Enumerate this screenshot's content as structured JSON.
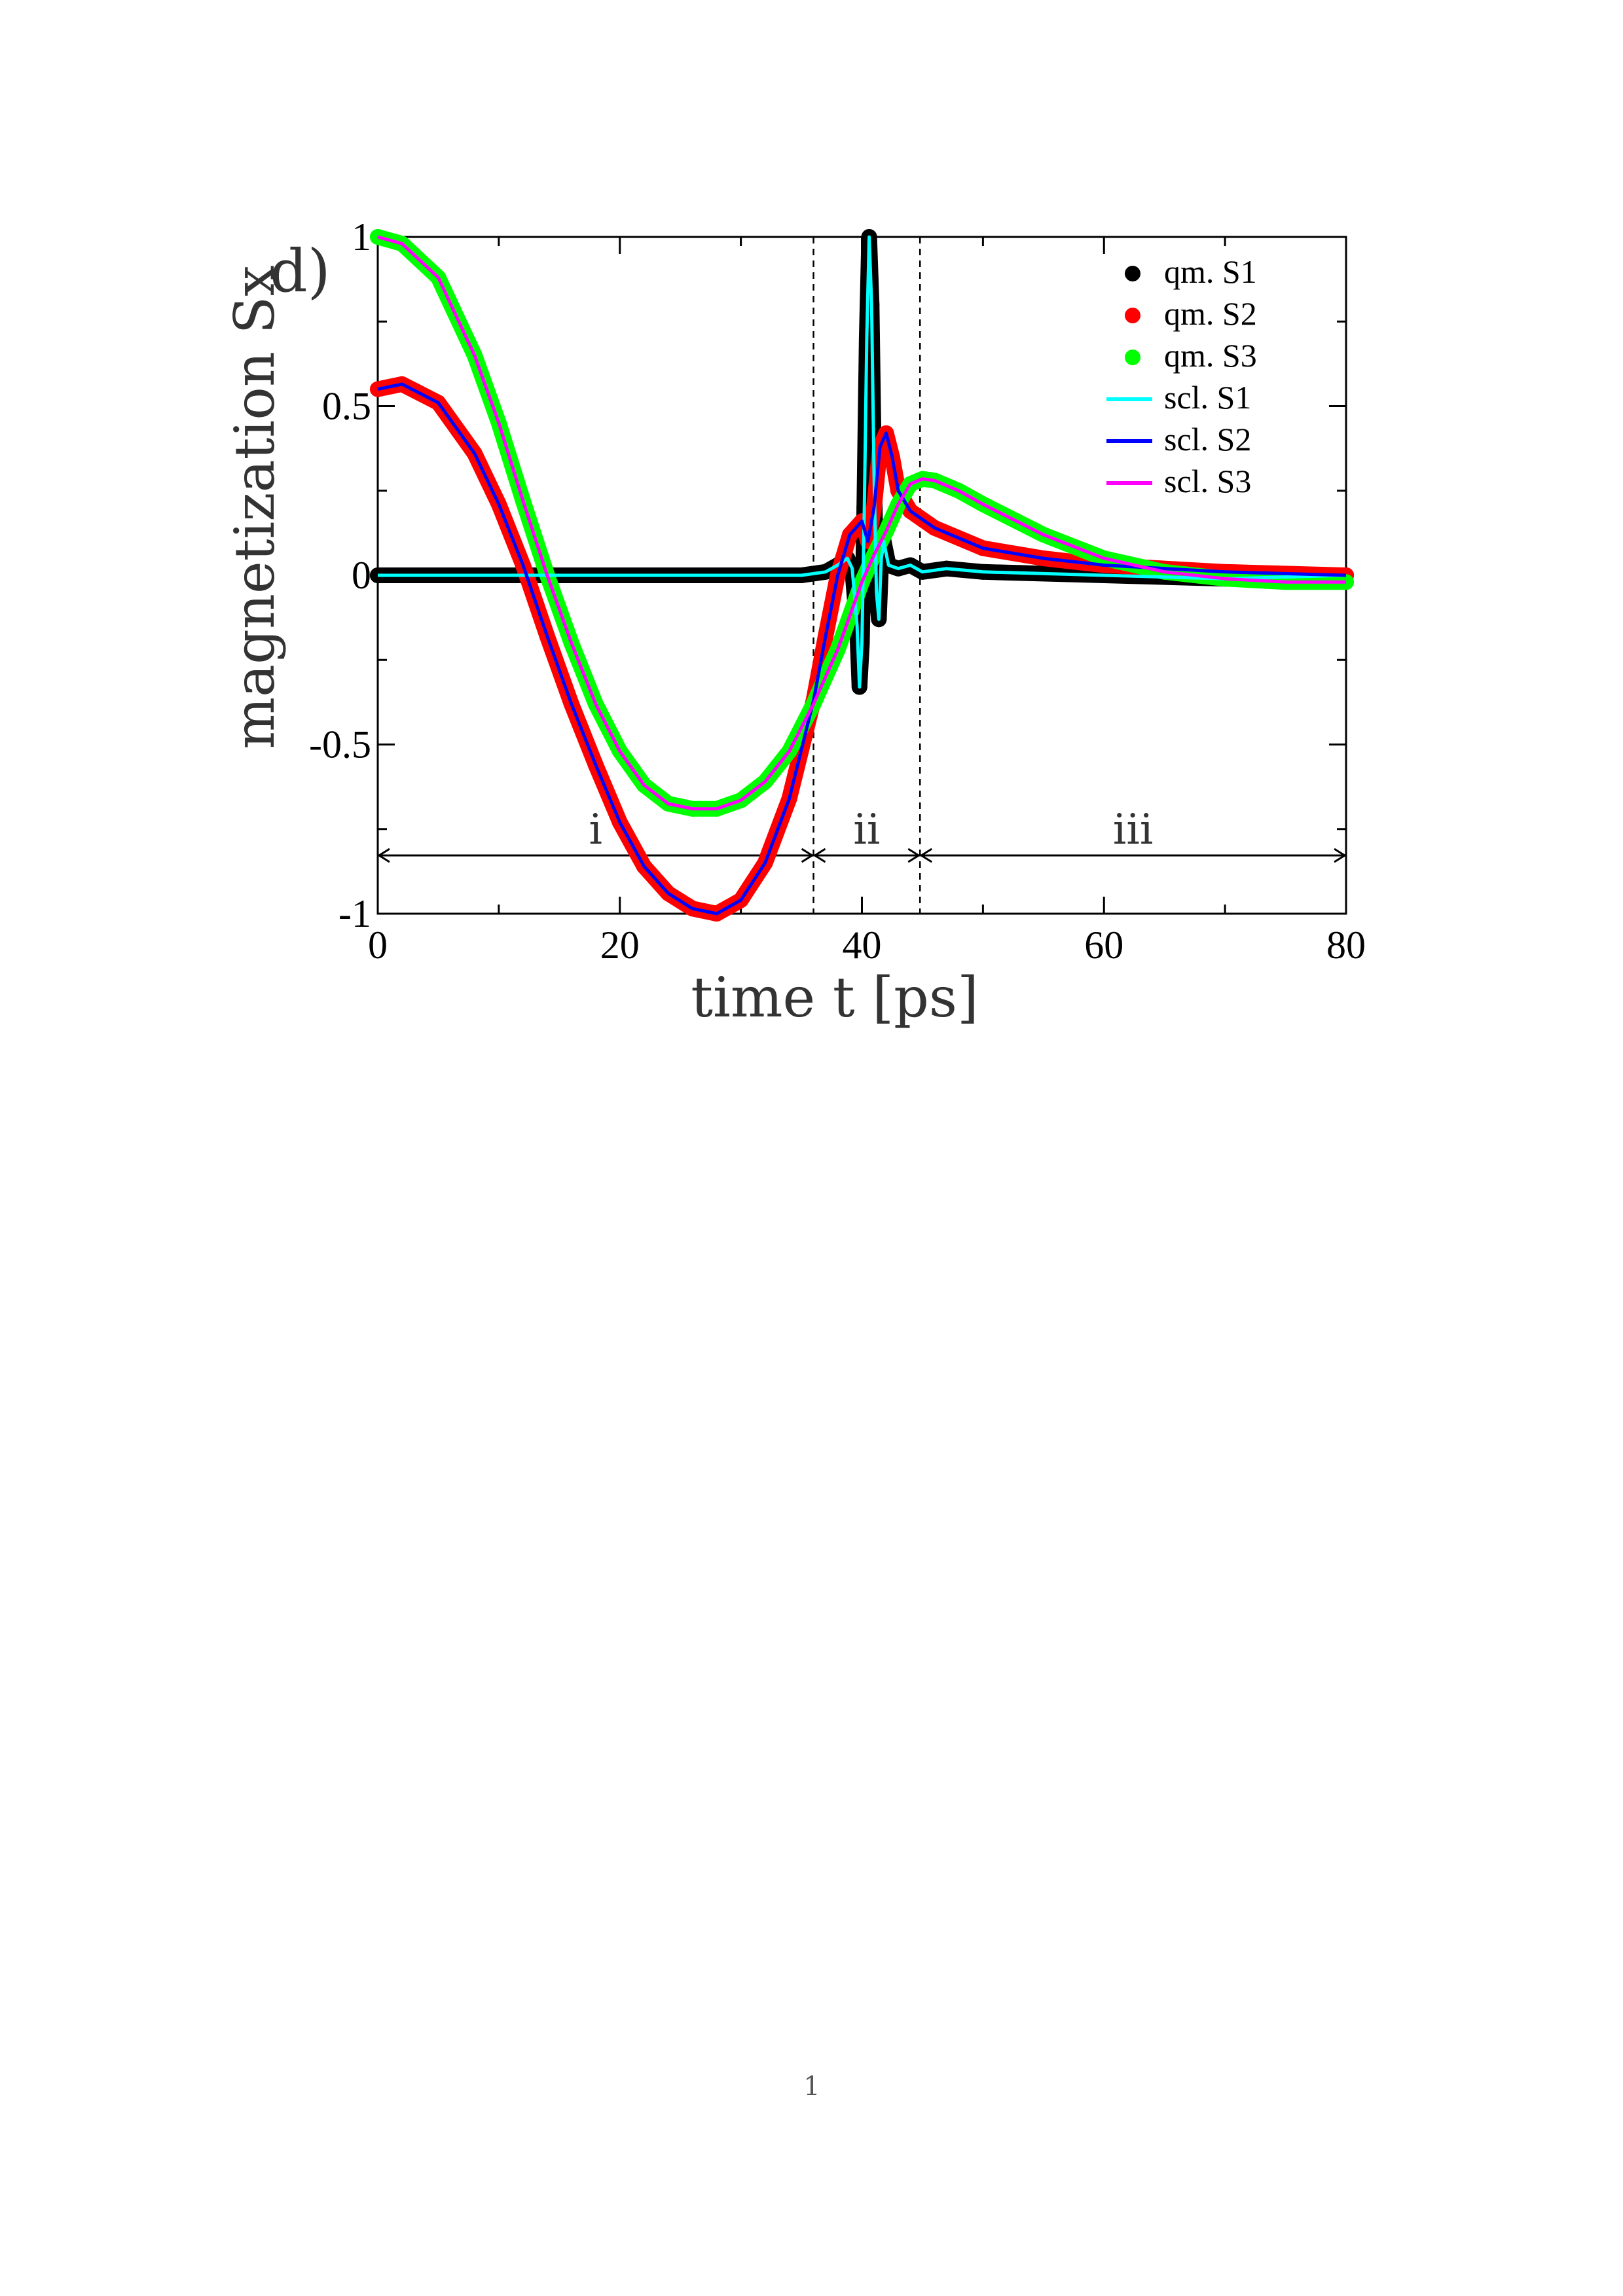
{
  "page": {
    "number": "1"
  },
  "chart_data": {
    "type": "line",
    "panel_label": "d)",
    "xlabel": "time t [ps]",
    "ylabel": "magnetization Sx",
    "xlim": [
      0,
      80
    ],
    "ylim": [
      -1,
      1
    ],
    "xticks": [
      0,
      20,
      40,
      60,
      80
    ],
    "xtick_labels": [
      "0",
      "20",
      "40",
      "60",
      "80"
    ],
    "yticks": [
      -1,
      -0.5,
      0,
      0.5,
      1
    ],
    "ytick_labels": [
      "-1",
      "-0.5",
      "0",
      "0.5",
      "1"
    ],
    "grid": false,
    "legend_position": "top-right",
    "boundaries": [
      36,
      44.8
    ],
    "regions": [
      {
        "label": "i",
        "from": 0,
        "to": 36
      },
      {
        "label": "ii",
        "from": 36,
        "to": 44.8
      },
      {
        "label": "iii",
        "from": 44.8,
        "to": 80
      }
    ],
    "series": [
      {
        "name": "qm. S1",
        "style": "markers",
        "color": "#000000",
        "points": [
          [
            0,
            0
          ],
          [
            10,
            0
          ],
          [
            20,
            0
          ],
          [
            30,
            0
          ],
          [
            35,
            0
          ],
          [
            37,
            0.01
          ],
          [
            38,
            0.03
          ],
          [
            38.8,
            0.05
          ],
          [
            39.2,
            0.02
          ],
          [
            39.6,
            -0.15
          ],
          [
            39.8,
            -0.33
          ],
          [
            40,
            -0.2
          ],
          [
            40.2,
            0.2
          ],
          [
            40.4,
            0.7
          ],
          [
            40.6,
            1.0
          ],
          [
            40.8,
            0.8
          ],
          [
            41,
            0.3
          ],
          [
            41.2,
            -0.05
          ],
          [
            41.4,
            -0.13
          ],
          [
            41.6,
            0.05
          ],
          [
            41.8,
            0.1
          ],
          [
            42.2,
            0.03
          ],
          [
            43,
            0.02
          ],
          [
            44,
            0.03
          ],
          [
            45,
            0.01
          ],
          [
            47,
            0.02
          ],
          [
            50,
            0.01
          ],
          [
            60,
            0.0
          ],
          [
            70,
            -0.01
          ],
          [
            80,
            0.0
          ]
        ]
      },
      {
        "name": "qm. S2",
        "style": "markers",
        "color": "#ff0000",
        "points": [
          [
            0,
            0.55
          ],
          [
            2,
            0.565
          ],
          [
            5,
            0.51
          ],
          [
            8,
            0.36
          ],
          [
            10,
            0.21
          ],
          [
            12,
            0.03
          ],
          [
            14,
            -0.18
          ],
          [
            16,
            -0.38
          ],
          [
            18,
            -0.56
          ],
          [
            20,
            -0.73
          ],
          [
            22,
            -0.86
          ],
          [
            24,
            -0.94
          ],
          [
            26,
            -0.985
          ],
          [
            28,
            -1.0
          ],
          [
            30,
            -0.96
          ],
          [
            32,
            -0.85
          ],
          [
            34,
            -0.66
          ],
          [
            36,
            -0.37
          ],
          [
            37,
            -0.18
          ],
          [
            38,
            0.0
          ],
          [
            39,
            0.12
          ],
          [
            40,
            0.16
          ],
          [
            40.5,
            0.1
          ],
          [
            41,
            0.2
          ],
          [
            41.5,
            0.38
          ],
          [
            42,
            0.42
          ],
          [
            42.5,
            0.35
          ],
          [
            43,
            0.25
          ],
          [
            44,
            0.19
          ],
          [
            46,
            0.14
          ],
          [
            50,
            0.08
          ],
          [
            55,
            0.05
          ],
          [
            60,
            0.03
          ],
          [
            70,
            0.01
          ],
          [
            80,
            0.0
          ]
        ]
      },
      {
        "name": "qm. S3",
        "style": "markers",
        "color": "#00ff00",
        "points": [
          [
            0,
            1.0
          ],
          [
            2,
            0.98
          ],
          [
            5,
            0.88
          ],
          [
            8,
            0.65
          ],
          [
            10,
            0.45
          ],
          [
            12,
            0.22
          ],
          [
            14,
            0.0
          ],
          [
            16,
            -0.2
          ],
          [
            18,
            -0.38
          ],
          [
            20,
            -0.52
          ],
          [
            22,
            -0.62
          ],
          [
            24,
            -0.675
          ],
          [
            26,
            -0.69
          ],
          [
            28,
            -0.69
          ],
          [
            30,
            -0.665
          ],
          [
            32,
            -0.61
          ],
          [
            34,
            -0.52
          ],
          [
            36,
            -0.38
          ],
          [
            37,
            -0.3
          ],
          [
            38,
            -0.22
          ],
          [
            39,
            -0.12
          ],
          [
            40,
            -0.02
          ],
          [
            41,
            0.06
          ],
          [
            42,
            0.13
          ],
          [
            43,
            0.21
          ],
          [
            44,
            0.27
          ],
          [
            45,
            0.285
          ],
          [
            46,
            0.28
          ],
          [
            48,
            0.25
          ],
          [
            50,
            0.21
          ],
          [
            55,
            0.12
          ],
          [
            60,
            0.05
          ],
          [
            65,
            0.01
          ],
          [
            70,
            -0.01
          ],
          [
            75,
            -0.02
          ],
          [
            80,
            -0.02
          ]
        ]
      },
      {
        "name": "scl. S1",
        "style": "line",
        "color": "#00ffff",
        "points": [
          [
            0,
            0
          ],
          [
            10,
            0
          ],
          [
            20,
            0
          ],
          [
            30,
            0
          ],
          [
            35,
            0
          ],
          [
            37,
            0.01
          ],
          [
            38,
            0.03
          ],
          [
            38.8,
            0.05
          ],
          [
            39.2,
            0.02
          ],
          [
            39.6,
            -0.15
          ],
          [
            39.8,
            -0.33
          ],
          [
            40,
            -0.2
          ],
          [
            40.2,
            0.2
          ],
          [
            40.4,
            0.7
          ],
          [
            40.6,
            1.0
          ],
          [
            40.8,
            0.8
          ],
          [
            41,
            0.3
          ],
          [
            41.2,
            -0.05
          ],
          [
            41.4,
            -0.13
          ],
          [
            41.6,
            0.05
          ],
          [
            41.8,
            0.1
          ],
          [
            42.2,
            0.03
          ],
          [
            43,
            0.02
          ],
          [
            44,
            0.03
          ],
          [
            45,
            0.01
          ],
          [
            47,
            0.02
          ],
          [
            50,
            0.01
          ],
          [
            60,
            0.0
          ],
          [
            70,
            -0.01
          ],
          [
            80,
            0.0
          ]
        ]
      },
      {
        "name": "scl. S2",
        "style": "line",
        "color": "#0000ff",
        "points": [
          [
            0,
            0.55
          ],
          [
            2,
            0.565
          ],
          [
            5,
            0.51
          ],
          [
            8,
            0.36
          ],
          [
            10,
            0.21
          ],
          [
            12,
            0.03
          ],
          [
            14,
            -0.18
          ],
          [
            16,
            -0.38
          ],
          [
            18,
            -0.56
          ],
          [
            20,
            -0.73
          ],
          [
            22,
            -0.86
          ],
          [
            24,
            -0.94
          ],
          [
            26,
            -0.985
          ],
          [
            28,
            -1.0
          ],
          [
            30,
            -0.96
          ],
          [
            32,
            -0.85
          ],
          [
            34,
            -0.66
          ],
          [
            36,
            -0.37
          ],
          [
            37,
            -0.18
          ],
          [
            38,
            0.0
          ],
          [
            39,
            0.12
          ],
          [
            40,
            0.16
          ],
          [
            40.5,
            0.1
          ],
          [
            41,
            0.2
          ],
          [
            41.5,
            0.38
          ],
          [
            42,
            0.42
          ],
          [
            42.5,
            0.35
          ],
          [
            43,
            0.25
          ],
          [
            44,
            0.19
          ],
          [
            46,
            0.14
          ],
          [
            50,
            0.08
          ],
          [
            55,
            0.05
          ],
          [
            60,
            0.03
          ],
          [
            70,
            0.01
          ],
          [
            80,
            0.0
          ]
        ]
      },
      {
        "name": "scl. S3",
        "style": "line",
        "color": "#ff00ff",
        "points": [
          [
            0,
            1.0
          ],
          [
            2,
            0.98
          ],
          [
            5,
            0.88
          ],
          [
            8,
            0.65
          ],
          [
            10,
            0.45
          ],
          [
            12,
            0.22
          ],
          [
            14,
            0.0
          ],
          [
            16,
            -0.2
          ],
          [
            18,
            -0.38
          ],
          [
            20,
            -0.52
          ],
          [
            22,
            -0.62
          ],
          [
            24,
            -0.675
          ],
          [
            26,
            -0.69
          ],
          [
            28,
            -0.69
          ],
          [
            30,
            -0.665
          ],
          [
            32,
            -0.61
          ],
          [
            34,
            -0.52
          ],
          [
            36,
            -0.38
          ],
          [
            37,
            -0.3
          ],
          [
            38,
            -0.22
          ],
          [
            39,
            -0.12
          ],
          [
            40,
            -0.02
          ],
          [
            41,
            0.06
          ],
          [
            42,
            0.13
          ],
          [
            43,
            0.21
          ],
          [
            44,
            0.27
          ],
          [
            45,
            0.285
          ],
          [
            46,
            0.28
          ],
          [
            48,
            0.25
          ],
          [
            50,
            0.21
          ],
          [
            55,
            0.12
          ],
          [
            60,
            0.05
          ],
          [
            65,
            0.01
          ],
          [
            70,
            -0.01
          ],
          [
            75,
            -0.02
          ],
          [
            80,
            -0.02
          ]
        ]
      }
    ]
  }
}
